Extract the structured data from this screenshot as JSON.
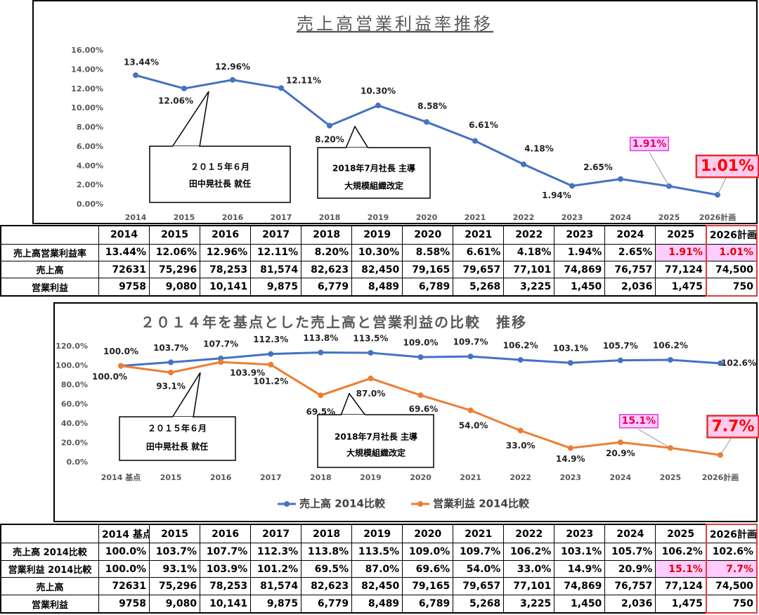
{
  "chart_data": [
    {
      "type": "line",
      "title": "売上高営業利益率推移",
      "categories": [
        "2014",
        "2015",
        "2016",
        "2017",
        "2018",
        "2019",
        "2020",
        "2021",
        "2022",
        "2023",
        "2024",
        "2025",
        "2026計画"
      ],
      "series": [
        {
          "color": "#4472c4",
          "values": [
            13.44,
            12.06,
            12.96,
            12.11,
            8.2,
            10.3,
            8.58,
            6.61,
            4.18,
            1.94,
            2.65,
            1.91,
            1.01
          ],
          "value_labels": [
            "13.44%",
            "12.06%",
            "12.96%",
            "12.11%",
            "8.20%",
            "10.30%",
            "8.58%",
            "6.61%",
            "4.18%",
            "1.94%",
            "2.65%",
            "1.91%",
            "1.01%"
          ]
        }
      ],
      "ylim": [
        0,
        16
      ],
      "yticks": [
        {
          "value": 0,
          "label": "0.00%"
        },
        {
          "value": 2,
          "label": "2.00%"
        },
        {
          "value": 4,
          "label": "4.00%"
        },
        {
          "value": 6,
          "label": "6.00%"
        },
        {
          "value": 8,
          "label": "8.00%"
        },
        {
          "value": 10,
          "label": "10.00%"
        },
        {
          "value": 12,
          "label": "12.00%"
        },
        {
          "value": 14,
          "label": "14.00%"
        },
        {
          "value": 16,
          "label": "16.00%"
        }
      ],
      "grid": false,
      "annotations": [
        [
          "２０１５年６月",
          "田中晃社長 就任"
        ],
        [
          "2018年7月社長 主導",
          "大規模組織改定"
        ]
      ]
    },
    {
      "type": "line",
      "title": "２０１４年を基点とした売上高と営業利益の比較　推移",
      "categories": [
        "2014 基点",
        "2015",
        "2016",
        "2017",
        "2018",
        "2019",
        "2020",
        "2021",
        "2022",
        "2023",
        "2024",
        "2025",
        "2026計画"
      ],
      "series": [
        {
          "name": "売上高 2014比較",
          "color": "#4472c4",
          "values": [
            100.0,
            103.7,
            107.7,
            112.3,
            113.8,
            113.5,
            109.0,
            109.7,
            106.2,
            103.1,
            105.7,
            106.2,
            102.6
          ],
          "value_labels": [
            "100.0%",
            "103.7%",
            "107.7%",
            "112.3%",
            "113.8%",
            "113.5%",
            "109.0%",
            "109.7%",
            "106.2%",
            "103.1%",
            "105.7%",
            "106.2%",
            "102.6%"
          ]
        },
        {
          "name": "営業利益 2014比較",
          "color": "#ed7d31",
          "values": [
            100.0,
            93.1,
            103.9,
            101.2,
            69.5,
            87.0,
            69.6,
            54.0,
            33.0,
            14.9,
            20.9,
            15.1,
            7.7
          ],
          "value_labels": [
            "100.0%",
            "93.1%",
            "103.9%",
            "101.2%",
            "69.5%",
            "87.0%",
            "69.6%",
            "54.0%",
            "33.0%",
            "14.9%",
            "20.9%",
            "15.1%",
            "7.7%"
          ]
        }
      ],
      "ylim": [
        0,
        120
      ],
      "yticks": [
        {
          "value": 0,
          "label": "0.0%"
        },
        {
          "value": 20,
          "label": "20.0%"
        },
        {
          "value": 40,
          "label": "40.0%"
        },
        {
          "value": 60,
          "label": "60.0%"
        },
        {
          "value": 80,
          "label": "80.0%"
        },
        {
          "value": 100,
          "label": "100.0%"
        },
        {
          "value": 120,
          "label": "120.0%"
        }
      ],
      "grid": false,
      "legend": "bottom",
      "annotations": [
        [
          "２０１５年６月",
          "田中晃社長 就任"
        ],
        [
          "2018年7月社長 主導",
          "大規模組織改定"
        ]
      ]
    }
  ],
  "tables": [
    {
      "columns": [
        "2014",
        "2015",
        "2016",
        "2017",
        "2018",
        "2019",
        "2020",
        "2021",
        "2022",
        "2023",
        "2024",
        "2025",
        "2026計画"
      ],
      "rows": [
        {
          "label": "売上高営業利益率",
          "cells": [
            "13.44%",
            "12.06%",
            "12.96%",
            "12.11%",
            "8.20%",
            "10.30%",
            "8.58%",
            "6.61%",
            "4.18%",
            "1.94%",
            "2.65%",
            "1.91%",
            "1.01%"
          ]
        },
        {
          "label": "売上高",
          "cells": [
            "72631",
            "75,296",
            "78,253",
            "81,574",
            "82,623",
            "82,450",
            "79,165",
            "79,657",
            "77,101",
            "74,869",
            "76,757",
            "77,124",
            "74,500"
          ]
        },
        {
          "label": "営業利益",
          "cells": [
            "9758",
            "9,080",
            "10,141",
            "9,875",
            "6,779",
            "8,489",
            "6,789",
            "5,268",
            "3,225",
            "1,450",
            "2,036",
            "1,475",
            "750"
          ]
        }
      ]
    },
    {
      "columns": [
        "2014 基点",
        "2015",
        "2016",
        "2017",
        "2018",
        "2019",
        "2020",
        "2021",
        "2022",
        "2023",
        "2024",
        "2025",
        "2026計画"
      ],
      "rows": [
        {
          "label": "売上高 2014比較",
          "cells": [
            "100.0%",
            "103.7%",
            "107.7%",
            "112.3%",
            "113.8%",
            "113.5%",
            "109.0%",
            "109.7%",
            "106.2%",
            "103.1%",
            "105.7%",
            "106.2%",
            "102.6%"
          ]
        },
        {
          "label": "営業利益 2014比較",
          "cells": [
            "100.0%",
            "93.1%",
            "103.9%",
            "101.2%",
            "69.5%",
            "87.0%",
            "69.6%",
            "54.0%",
            "33.0%",
            "14.9%",
            "20.9%",
            "15.1%",
            "7.7%"
          ]
        },
        {
          "label": "売上高",
          "cells": [
            "72631",
            "75,296",
            "78,253",
            "81,574",
            "82,623",
            "82,450",
            "79,165",
            "79,657",
            "77,101",
            "74,869",
            "76,757",
            "77,124",
            "74,500"
          ]
        },
        {
          "label": "営業利益",
          "cells": [
            "9758",
            "9,080",
            "10,141",
            "9,875",
            "6,779",
            "8,489",
            "6,789",
            "5,268",
            "3,225",
            "1,450",
            "2,036",
            "1,475",
            "750"
          ]
        }
      ]
    }
  ]
}
